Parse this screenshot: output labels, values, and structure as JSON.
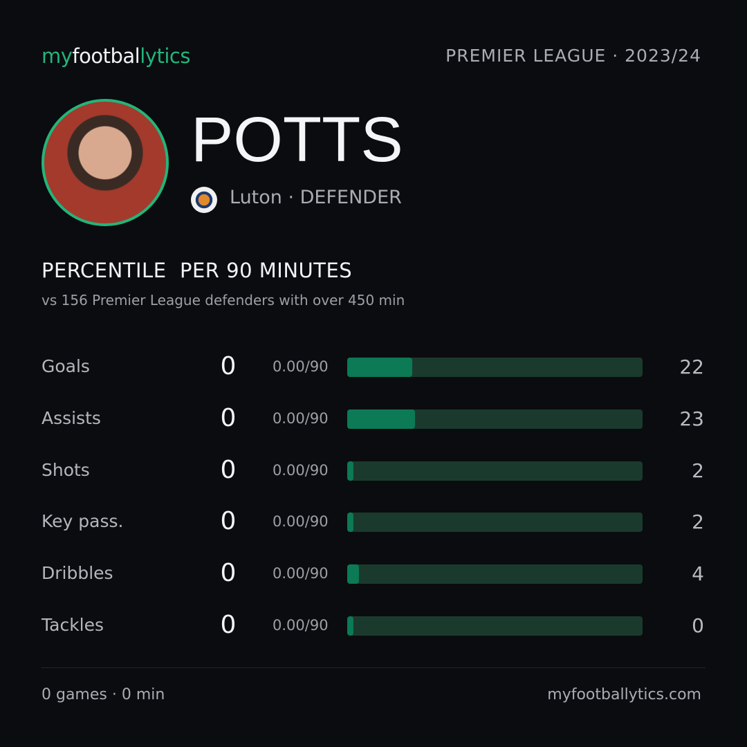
{
  "header": {
    "brand": [
      "my",
      "footbal",
      "lytics"
    ],
    "competition": "PREMIER LEAGUE · 2023/24"
  },
  "player": {
    "name": "POTTS",
    "club": "Luton · DEFENDER"
  },
  "section": {
    "title": "PERCENTILE  PER 90 MINUTES",
    "subtitle": "vs 156 Premier League defenders with over 450 min"
  },
  "chart_data": {
    "type": "bar",
    "orientation": "horizontal",
    "categories": [
      "Goals",
      "Assists",
      "Shots",
      "Key pass.",
      "Dribbles",
      "Tackles"
    ],
    "totals": [
      0,
      0,
      0,
      0,
      0,
      0
    ],
    "per90": [
      "0.00/90",
      "0.00/90",
      "0.00/90",
      "0.00/90",
      "0.00/90",
      "0.00/90"
    ],
    "values": [
      22,
      23,
      2,
      2,
      4,
      0
    ],
    "xlim": [
      0,
      100
    ],
    "color": "#0b7a55",
    "track_color": "#1a3a2d"
  },
  "footer": {
    "left": "0 games · 0 min",
    "right": "myfootballytics.com"
  }
}
